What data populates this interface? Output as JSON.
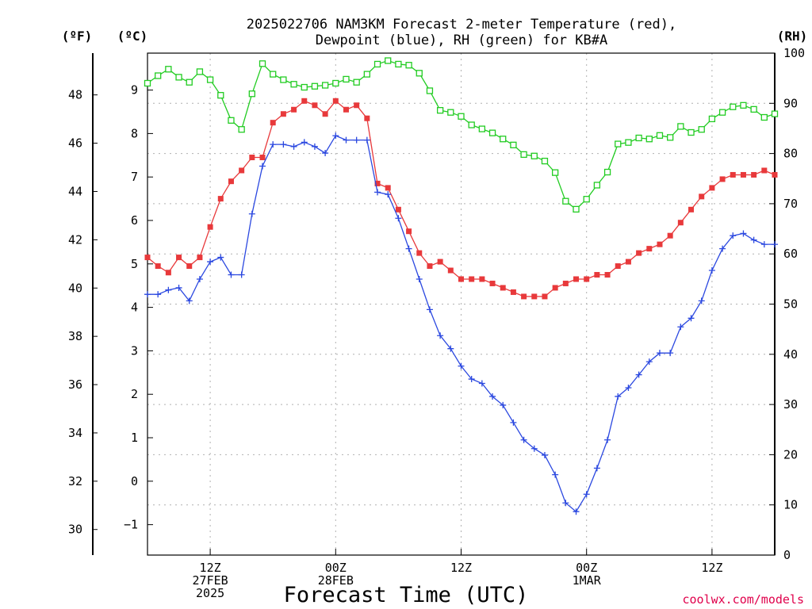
{
  "colors": {
    "temperature": "#e8393b",
    "dewpoint": "#2b48e0",
    "rh": "#22cc22",
    "grid": "#b0b0b0",
    "credit": "#e0004b"
  },
  "credit": "coolwx.com/models",
  "chart_data": {
    "type": "line",
    "title_line1": "2025022706 NAM3KM Forecast 2-meter Temperature (red),",
    "title_line2": "Dewpoint (blue), RH (green) for KB#A",
    "xlabel": "Forecast Time (UTC)",
    "left_unit_f": "(ºF)",
    "left_unit_c": "(ºC)",
    "right_unit": "(RH)",
    "x_ticks": [
      {
        "hour": 6,
        "lines": [
          "12Z",
          "27FEB",
          "2025"
        ]
      },
      {
        "hour": 18,
        "lines": [
          "00Z",
          "28FEB"
        ]
      },
      {
        "hour": 30,
        "lines": [
          "12Z"
        ]
      },
      {
        "hour": 42,
        "lines": [
          "00Z",
          "1MAR"
        ]
      },
      {
        "hour": 54,
        "lines": [
          "12Z"
        ]
      }
    ],
    "xlim": [
      0,
      60
    ],
    "ylim_c": [
      -1.7,
      9.85
    ],
    "ylim_rh": [
      0,
      100
    ],
    "f_ticks": [
      30,
      32,
      34,
      36,
      38,
      40,
      42,
      44,
      46,
      48
    ],
    "c_ticks": [
      -1,
      0,
      1,
      2,
      3,
      4,
      5,
      6,
      7,
      8,
      9
    ],
    "rh_ticks": [
      0,
      10,
      20,
      30,
      40,
      50,
      60,
      70,
      80,
      90,
      100
    ],
    "grid": true,
    "hours": [
      0,
      1,
      2,
      3,
      4,
      5,
      6,
      7,
      8,
      9,
      10,
      11,
      12,
      13,
      14,
      15,
      16,
      17,
      18,
      19,
      20,
      21,
      22,
      23,
      24,
      25,
      26,
      27,
      28,
      29,
      30,
      31,
      32,
      33,
      34,
      35,
      36,
      37,
      38,
      39,
      40,
      41,
      42,
      43,
      44,
      45,
      46,
      47,
      48,
      49,
      50,
      51,
      52,
      53,
      54,
      55,
      56,
      57,
      58,
      59,
      60
    ],
    "series": [
      {
        "name": "Temperature",
        "units": "C",
        "marker": "filled-square",
        "values": [
          5.15,
          4.95,
          4.8,
          5.15,
          4.95,
          5.15,
          5.85,
          6.5,
          6.9,
          7.15,
          7.45,
          7.45,
          8.25,
          8.45,
          8.55,
          8.75,
          8.65,
          8.45,
          8.75,
          8.55,
          8.65,
          8.35,
          6.85,
          6.75,
          6.25,
          5.75,
          5.25,
          4.95,
          5.05,
          4.85,
          4.65,
          4.65,
          4.65,
          4.55,
          4.45,
          4.35,
          4.25,
          4.25,
          4.25,
          4.45,
          4.55,
          4.65,
          4.65,
          4.75,
          4.75,
          4.95,
          5.05,
          5.25,
          5.35,
          5.45,
          5.65,
          5.95,
          6.25,
          6.55,
          6.75,
          6.95,
          7.05,
          7.05,
          7.05,
          7.15,
          7.05
        ]
      },
      {
        "name": "Dewpoint",
        "units": "C",
        "marker": "plus",
        "values": [
          4.3,
          4.3,
          4.4,
          4.45,
          4.15,
          4.65,
          5.05,
          5.15,
          4.75,
          4.75,
          6.15,
          7.25,
          7.75,
          7.75,
          7.7,
          7.8,
          7.7,
          7.55,
          7.95,
          7.85,
          7.85,
          7.85,
          6.65,
          6.6,
          6.05,
          5.35,
          4.65,
          3.95,
          3.35,
          3.05,
          2.65,
          2.35,
          2.25,
          1.95,
          1.75,
          1.35,
          0.95,
          0.75,
          0.6,
          0.15,
          -0.5,
          -0.7,
          -0.3,
          0.3,
          0.95,
          1.95,
          2.15,
          2.45,
          2.75,
          2.95,
          2.95,
          3.55,
          3.75,
          4.15,
          4.85,
          5.35,
          5.65,
          5.7,
          5.55,
          5.45,
          5.45
        ]
      },
      {
        "name": "RH",
        "units": "%",
        "marker": "open-square",
        "values": [
          94,
          95.5,
          96.8,
          95.2,
          94.2,
          96.3,
          94.7,
          91.6,
          86.6,
          84.8,
          91.9,
          97.9,
          95.8,
          94.7,
          93.8,
          93.2,
          93.4,
          93.6,
          94,
          94.8,
          94.2,
          95.8,
          97.8,
          98.5,
          97.8,
          97.6,
          96,
          92.5,
          88.6,
          88.2,
          87.4,
          85.7,
          84.9,
          84.1,
          82.9,
          81.7,
          79.8,
          79.5,
          78.5,
          76.2,
          70.5,
          68.9,
          70.9,
          73.7,
          76.3,
          81.9,
          82.2,
          83.1,
          82.9,
          83.6,
          83.2,
          85.4,
          84.2,
          84.8,
          86.9,
          88.2,
          89.3,
          89.6,
          88.8,
          87.2,
          87.9
        ]
      }
    ]
  }
}
